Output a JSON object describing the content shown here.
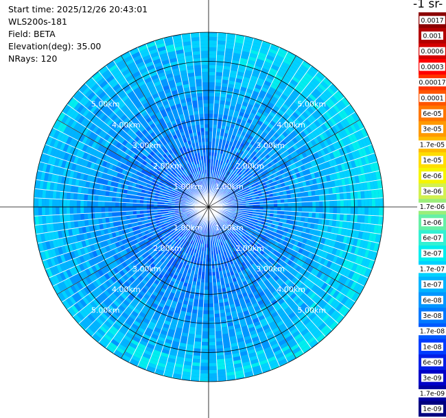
{
  "meta": {
    "start_time_label": "Start time: 2025/12/26 20:43:01",
    "instrument_label": "WLS200s-181",
    "field_label": "Field: BETA",
    "elevation_label": "Elevation(deg): 35.00",
    "nrays_label": "NRays: 120"
  },
  "colorbar": {
    "unit_text": "-1 sr-",
    "entries": [
      {
        "label": "0.0017",
        "color": "#8b0000"
      },
      {
        "label": "0.001",
        "color": "#b30000"
      },
      {
        "label": "0.0006",
        "color": "#d40000"
      },
      {
        "label": "0.0003",
        "color": "#ff0000"
      },
      {
        "label": "0.00017",
        "color": "#ff3300"
      },
      {
        "label": "0.0001",
        "color": "#ff5500"
      },
      {
        "label": "6e-05",
        "color": "#ff7700"
      },
      {
        "label": "3e-05",
        "color": "#ff9900"
      },
      {
        "label": "1.7e-05",
        "color": "#ffbb00"
      },
      {
        "label": "1e-05",
        "color": "#ffdd00"
      },
      {
        "label": "6e-06",
        "color": "#f5f500"
      },
      {
        "label": "3e-06",
        "color": "#d2f050"
      },
      {
        "label": "1.7e-06",
        "color": "#9aee7a"
      },
      {
        "label": "1e-06",
        "color": "#66f0a6"
      },
      {
        "label": "6e-07",
        "color": "#33f0d2"
      },
      {
        "label": "3e-07",
        "color": "#00eeee"
      },
      {
        "label": "1.7e-07",
        "color": "#00d2ff"
      },
      {
        "label": "1e-07",
        "color": "#00b4ff"
      },
      {
        "label": "6e-08",
        "color": "#0096ff"
      },
      {
        "label": "3e-08",
        "color": "#0078ff"
      },
      {
        "label": "1.7e-08",
        "color": "#005aff"
      },
      {
        "label": "1e-08",
        "color": "#003cff"
      },
      {
        "label": "6e-09",
        "color": "#001ee6"
      },
      {
        "label": "3e-09",
        "color": "#0000c8"
      },
      {
        "label": "1.7e-09",
        "color": "#0000a0"
      },
      {
        "label": "1e-09",
        "color": "#000080"
      }
    ]
  },
  "chart_data": {
    "type": "heatmap",
    "projection": "polar (PPI scan)",
    "field": "BETA",
    "elevation_deg": 35.0,
    "n_rays": 120,
    "ray_azimuth_step_deg": 3,
    "range_rings_km": [
      1,
      2,
      3,
      4,
      5
    ],
    "ring_labels": [
      "1.00km",
      "2.00km",
      "3.00km",
      "4.00km",
      "5.00km"
    ],
    "max_range_km": 6.0,
    "color_scale": "log",
    "value_range": [
      1e-09,
      0.0017
    ],
    "value_summary": "Most bins ~1e-08 to 6e-08 near the center (blue); ~1e-07 to 3e-07 at outer ranges (cyan), with patches up to ~1e-06 to 3e-06 (green) in the east and south sectors"
  },
  "colors": {
    "ring_line": "#000000",
    "spoke_line": "#000000",
    "gap_line": "#ffffff"
  }
}
